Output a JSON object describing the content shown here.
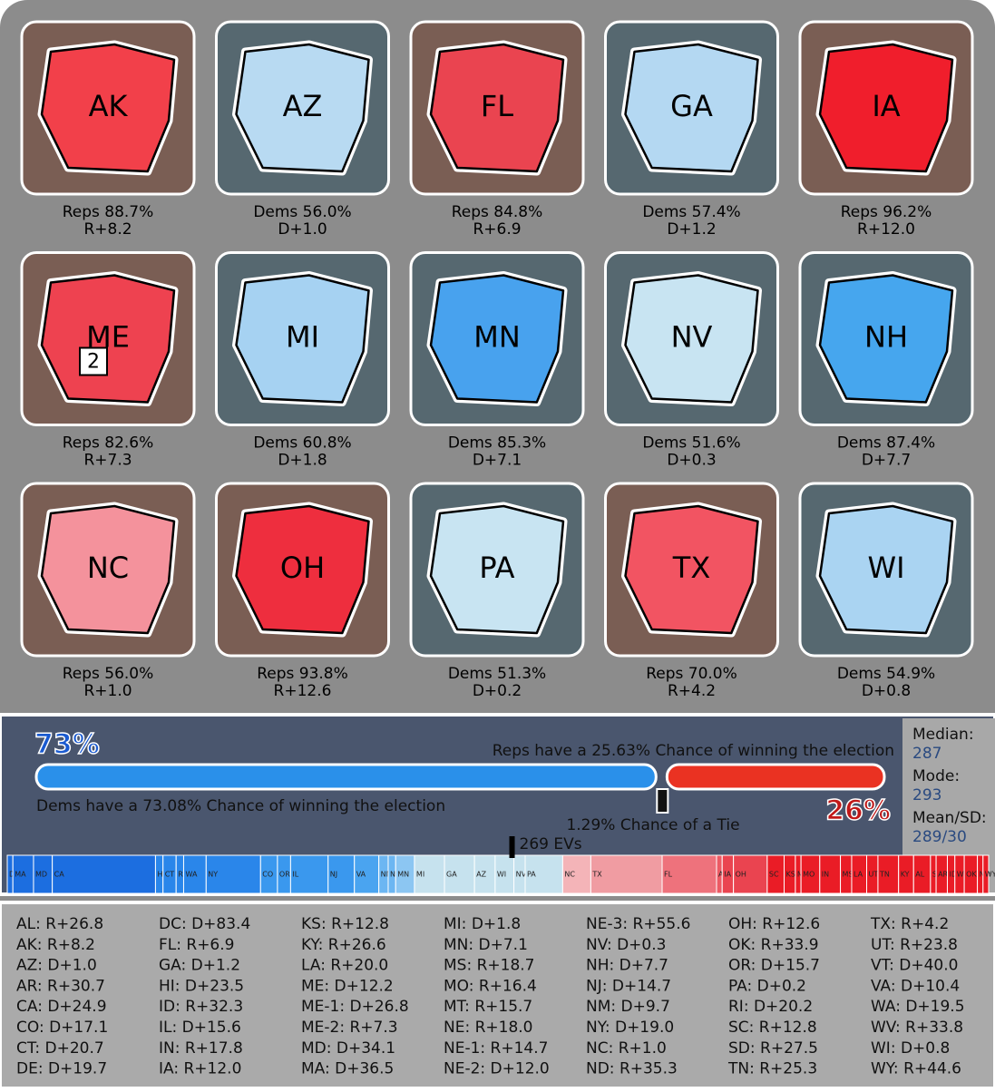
{
  "states": [
    {
      "abbr": "AK",
      "line1": "Reps 88.7%",
      "line2": "R+8.2",
      "bg": "#7a5e54",
      "fill": "#f2404a"
    },
    {
      "abbr": "AZ",
      "line1": "Dems 56.0%",
      "line2": "D+1.0",
      "bg": "#566870",
      "fill": "#b8daf2"
    },
    {
      "abbr": "FL",
      "line1": "Reps 84.8%",
      "line2": "R+6.9",
      "bg": "#7a5e54",
      "fill": "#ea4450"
    },
    {
      "abbr": "GA",
      "line1": "Dems 57.4%",
      "line2": "D+1.2",
      "bg": "#566870",
      "fill": "#b4d8f2"
    },
    {
      "abbr": "IA",
      "line1": "Reps 96.2%",
      "line2": "R+12.0",
      "bg": "#7a5e54",
      "fill": "#f01e2c"
    },
    {
      "abbr": "ME",
      "line1": "Reps 82.6%",
      "line2": "R+7.3",
      "bg": "#7a5e54",
      "fill": "#ee4250",
      "badge": "2"
    },
    {
      "abbr": "MI",
      "line1": "Dems 60.8%",
      "line2": "D+1.8",
      "bg": "#566870",
      "fill": "#a6d2f2"
    },
    {
      "abbr": "MN",
      "line1": "Dems 85.3%",
      "line2": "D+7.1",
      "bg": "#566870",
      "fill": "#48a2ee"
    },
    {
      "abbr": "NV",
      "line1": "Dems 51.6%",
      "line2": "D+0.3",
      "bg": "#566870",
      "fill": "#c8e4f2"
    },
    {
      "abbr": "NH",
      "line1": "Dems 87.4%",
      "line2": "D+7.7",
      "bg": "#566870",
      "fill": "#46a6ee"
    },
    {
      "abbr": "NC",
      "line1": "Reps 56.0%",
      "line2": "R+1.0",
      "bg": "#7a5e54",
      "fill": "#f4929c"
    },
    {
      "abbr": "OH",
      "line1": "Reps 93.8%",
      "line2": "R+12.6",
      "bg": "#7a5e54",
      "fill": "#ee2e3e"
    },
    {
      "abbr": "PA",
      "line1": "Dems 51.3%",
      "line2": "D+0.2",
      "bg": "#566870",
      "fill": "#c8e4f2"
    },
    {
      "abbr": "TX",
      "line1": "Reps 70.0%",
      "line2": "R+4.2",
      "bg": "#7a5e54",
      "fill": "#f25462"
    },
    {
      "abbr": "WI",
      "line1": "Dems 54.9%",
      "line2": "D+0.8",
      "bg": "#566870",
      "fill": "#aad4f2"
    }
  ],
  "banner": {
    "dems_pct": "73%",
    "reps_pct": "26%",
    "reps_text": "Reps have a 25.63% Chance of winning the election",
    "dems_text": "Dems have a 73.08% Chance of winning the election",
    "tie_text": "1.29% Chance of a Tie",
    "dems_chance": 73.08,
    "tie_chance": 1.29,
    "reps_chance": 25.63,
    "dems_color": "#2a90ea",
    "reps_color": "#ea3222"
  },
  "stats": [
    {
      "label": "Median:",
      "value": "287"
    },
    {
      "label": "Mode:",
      "value": "293"
    },
    {
      "label": "Mean/SD:",
      "value": "289/30"
    }
  ],
  "strip": {
    "threshold": 269,
    "threshold_label": "269 EVs",
    "segments": [
      {
        "label": "DC",
        "ev": 3,
        "color": "#1c6ee0"
      },
      {
        "label": "MA",
        "ev": 11,
        "color": "#1c6ee0"
      },
      {
        "label": "MD",
        "ev": 10,
        "color": "#1c6ee0"
      },
      {
        "label": "CA",
        "ev": 55,
        "color": "#1c6ee0"
      },
      {
        "label": "HI",
        "ev": 4,
        "color": "#2a86ea"
      },
      {
        "label": "CT",
        "ev": 7,
        "color": "#2a86ea"
      },
      {
        "label": "RI",
        "ev": 4,
        "color": "#2a86ea"
      },
      {
        "label": "WA",
        "ev": 12,
        "color": "#2a86ea"
      },
      {
        "label": "NY",
        "ev": 29,
        "color": "#2a86ea"
      },
      {
        "label": "CO",
        "ev": 9,
        "color": "#3a98ee"
      },
      {
        "label": "OR",
        "ev": 7,
        "color": "#3a98ee"
      },
      {
        "label": "IL",
        "ev": 20,
        "color": "#3a98ee"
      },
      {
        "label": "NJ",
        "ev": 14,
        "color": "#3a98ee"
      },
      {
        "label": "VA",
        "ev": 13,
        "color": "#4aa4f0"
      },
      {
        "label": "NM",
        "ev": 5,
        "color": "#6cb6f2"
      },
      {
        "label": "NH",
        "ev": 4,
        "color": "#6cb6f2"
      },
      {
        "label": "MN",
        "ev": 10,
        "color": "#8cc6f2"
      },
      {
        "label": "MI",
        "ev": 16,
        "color": "#c6e2ee"
      },
      {
        "label": "GA",
        "ev": 16,
        "color": "#c6e2ee"
      },
      {
        "label": "AZ",
        "ev": 11,
        "color": "#c6e2ee"
      },
      {
        "label": "WI",
        "ev": 10,
        "color": "#c6e2ee"
      },
      {
        "label": "NV",
        "ev": 6,
        "color": "#c6e2ee"
      },
      {
        "label": "PA",
        "ev": 20,
        "color": "#c6e2ee"
      },
      {
        "label": "NC",
        "ev": 15,
        "color": "#f4b4b8"
      },
      {
        "label": "TX",
        "ev": 38,
        "color": "#f09ca2"
      },
      {
        "label": "FL",
        "ev": 29,
        "color": "#ee727c"
      },
      {
        "label": "AK",
        "ev": 3,
        "color": "#ec5a64"
      },
      {
        "label": "IA",
        "ev": 6,
        "color": "#ea4450"
      },
      {
        "label": "OH",
        "ev": 18,
        "color": "#ea4450"
      },
      {
        "label": "SC",
        "ev": 9,
        "color": "#ea1c26"
      },
      {
        "label": "KS",
        "ev": 6,
        "color": "#ea1c26"
      },
      {
        "label": "MT",
        "ev": 3,
        "color": "#ea1c26"
      },
      {
        "label": "MO",
        "ev": 10,
        "color": "#ea1c26"
      },
      {
        "label": "IN",
        "ev": 11,
        "color": "#ea1c26"
      },
      {
        "label": "MS",
        "ev": 6,
        "color": "#ea1c26"
      },
      {
        "label": "LA",
        "ev": 8,
        "color": "#ea1c26"
      },
      {
        "label": "UT",
        "ev": 6,
        "color": "#ea1c26"
      },
      {
        "label": "TN",
        "ev": 11,
        "color": "#ea1c26"
      },
      {
        "label": "KY",
        "ev": 8,
        "color": "#ea1c26"
      },
      {
        "label": "AL",
        "ev": 9,
        "color": "#ea1c26"
      },
      {
        "label": "SD",
        "ev": 3,
        "color": "#ea1c26"
      },
      {
        "label": "AR",
        "ev": 6,
        "color": "#ea1c26"
      },
      {
        "label": "ID",
        "ev": 4,
        "color": "#ea1c26"
      },
      {
        "label": "WV",
        "ev": 5,
        "color": "#ea1c26"
      },
      {
        "label": "OK",
        "ev": 7,
        "color": "#ea1c26"
      },
      {
        "label": "ND",
        "ev": 3,
        "color": "#ea1c26"
      },
      {
        "label": "WY",
        "ev": 3,
        "color": "#ea1c26"
      }
    ]
  },
  "table": [
    [
      "AL: R+26.8",
      "AK: R+8.2",
      "AZ: D+1.0",
      "AR: R+30.7",
      "CA: D+24.9",
      "CO: D+17.1",
      "CT: D+20.7",
      "DE: D+19.7"
    ],
    [
      "DC: D+83.4",
      "FL: R+6.9",
      "GA: D+1.2",
      "HI: D+23.5",
      "ID: R+32.3",
      "IL: D+15.6",
      "IN: R+17.8",
      "IA: R+12.0"
    ],
    [
      "KS: R+12.8",
      "KY: R+26.6",
      "LA: R+20.0",
      "ME: D+12.2",
      "ME-1: D+26.8",
      "ME-2: R+7.3",
      "MD: D+34.1",
      "MA: D+36.5"
    ],
    [
      "MI: D+1.8",
      "MN: D+7.1",
      "MS: R+18.7",
      "MO: R+16.4",
      "MT: R+15.7",
      "NE: R+18.0",
      "NE-1: R+14.7",
      "NE-2: D+12.0"
    ],
    [
      "NE-3: R+55.6",
      "NV: D+0.3",
      "NH: D+7.7",
      "NJ: D+14.7",
      "NM: D+9.7",
      "NY: D+19.0",
      "NC: R+1.0",
      "ND: R+35.3"
    ],
    [
      "OH: R+12.6",
      "OK: R+33.9",
      "OR: D+15.7",
      "PA: D+0.2",
      "RI: D+20.2",
      "SC: R+12.8",
      "SD: R+27.5",
      "TN: R+25.3"
    ],
    [
      "TX: R+4.2",
      "UT: R+23.8",
      "VT: D+40.0",
      "VA: D+10.4",
      "WA: D+19.5",
      "WV: R+33.8",
      "WI: D+0.8",
      "WY: R+44.6"
    ]
  ]
}
